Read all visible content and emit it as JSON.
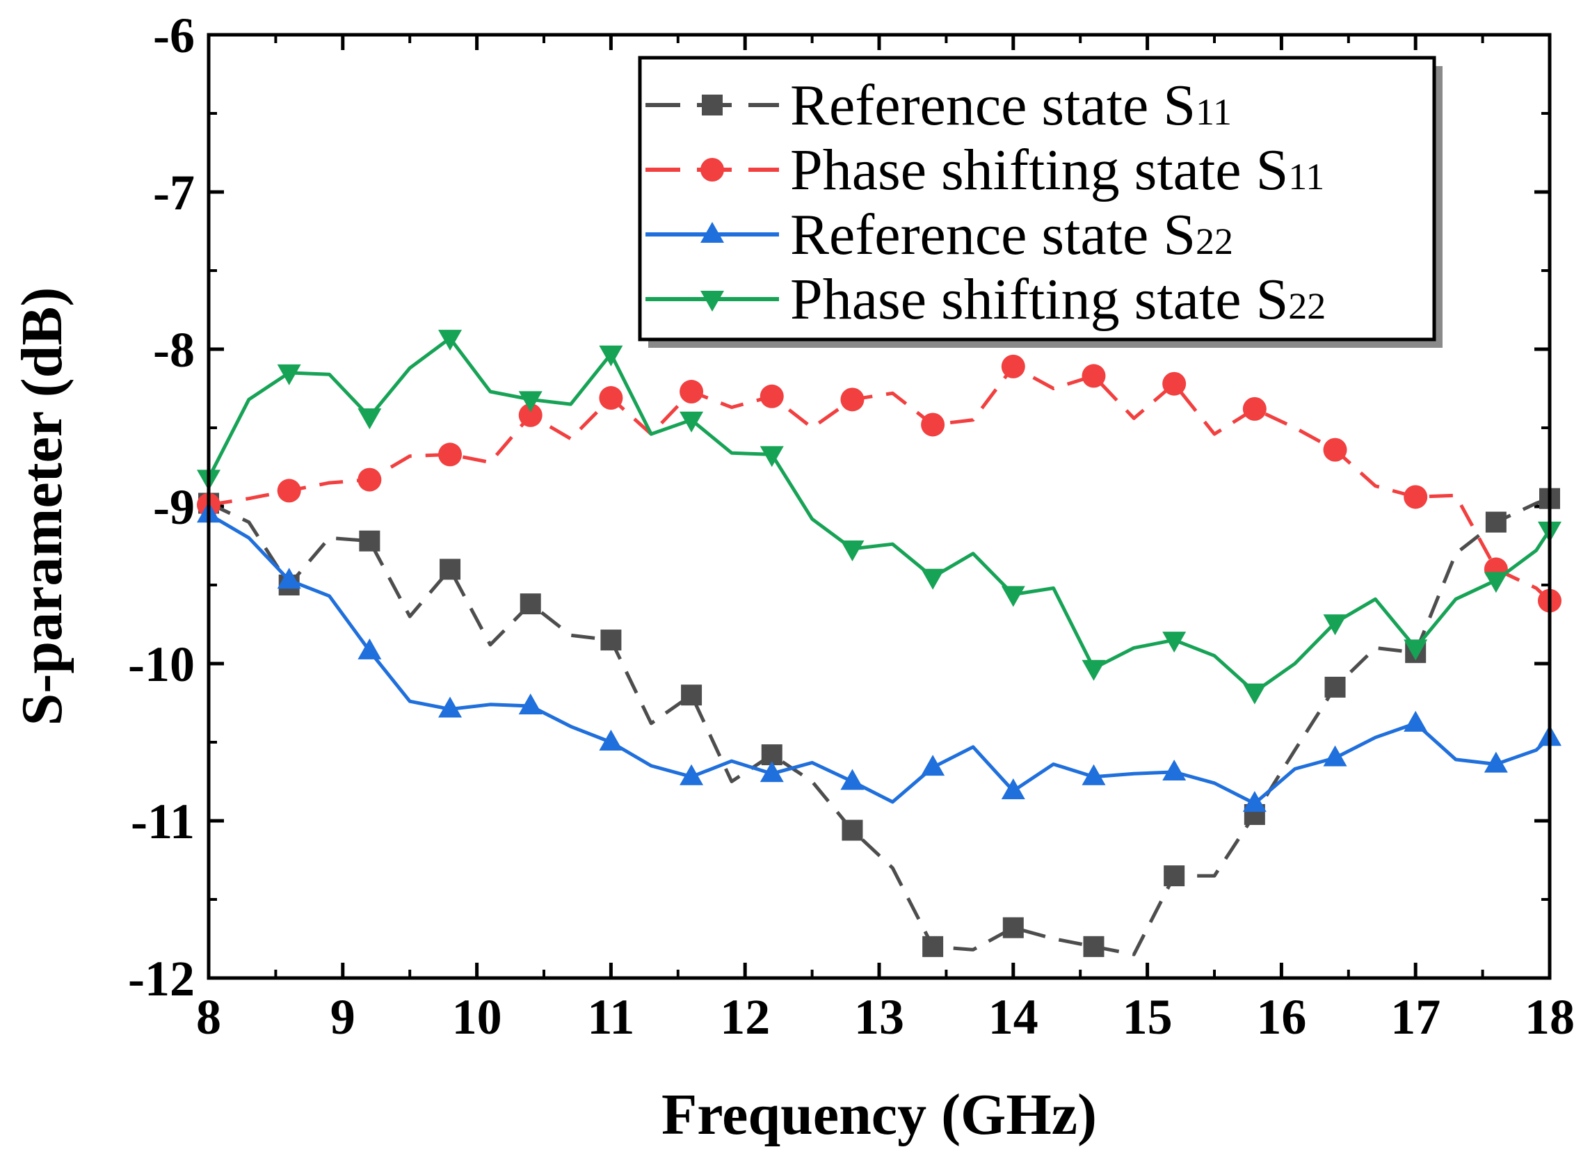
{
  "chart_data": {
    "type": "line",
    "xlabel": "Frequency (GHz)",
    "ylabel": "S-parameter (dB)",
    "xlim": [
      8,
      18
    ],
    "ylim": [
      -12,
      -6
    ],
    "xticks": [
      "8",
      "9",
      "10",
      "11",
      "12",
      "13",
      "14",
      "15",
      "16",
      "17",
      "18"
    ],
    "yticks": [
      "-6",
      "-7",
      "-8",
      "-9",
      "-10",
      "-11",
      "-12"
    ],
    "legend_position": "top-right",
    "series": [
      {
        "name": "Reference state S11",
        "label_main": "Reference state S",
        "label_sub": "11",
        "color": "#4d4d4d",
        "dash": "dash",
        "marker": "square",
        "x": [
          8.0,
          8.3,
          8.6,
          8.9,
          9.2,
          9.5,
          9.8,
          10.1,
          10.4,
          10.7,
          11.0,
          11.3,
          11.6,
          11.9,
          12.2,
          12.5,
          12.8,
          13.1,
          13.4,
          13.7,
          14.0,
          14.3,
          14.6,
          14.9,
          15.2,
          15.5,
          15.8,
          16.1,
          16.4,
          16.7,
          17.0,
          17.3,
          17.6,
          17.9,
          18.0
        ],
        "y": [
          -8.98,
          -9.1,
          -9.5,
          -9.2,
          -9.22,
          -9.7,
          -9.4,
          -9.88,
          -9.62,
          -9.82,
          -9.85,
          -10.38,
          -10.2,
          -10.75,
          -10.58,
          -10.75,
          -11.06,
          -11.3,
          -11.8,
          -11.82,
          -11.68,
          -11.75,
          -11.8,
          -11.85,
          -11.35,
          -11.35,
          -10.96,
          -10.55,
          -10.15,
          -9.9,
          -9.93,
          -9.3,
          -9.1,
          -8.98,
          -8.95
        ]
      },
      {
        "name": "Phase shifting state S11",
        "label_main": "Phase shifting state S",
        "label_sub": "11",
        "color": "#f23f3f",
        "dash": "dash",
        "marker": "circle",
        "x": [
          8.0,
          8.3,
          8.6,
          8.9,
          9.2,
          9.5,
          9.8,
          10.1,
          10.4,
          10.7,
          11.0,
          11.3,
          11.6,
          11.9,
          12.2,
          12.5,
          12.8,
          13.1,
          13.4,
          13.7,
          14.0,
          14.3,
          14.6,
          14.9,
          15.2,
          15.5,
          15.8,
          16.1,
          16.4,
          16.7,
          17.0,
          17.3,
          17.6,
          17.9,
          18.0
        ],
        "y": [
          -8.99,
          -8.95,
          -8.9,
          -8.85,
          -8.83,
          -8.68,
          -8.67,
          -8.72,
          -8.42,
          -8.57,
          -8.31,
          -8.54,
          -8.27,
          -8.37,
          -8.3,
          -8.5,
          -8.32,
          -8.28,
          -8.48,
          -8.45,
          -8.11,
          -8.25,
          -8.17,
          -8.44,
          -8.22,
          -8.54,
          -8.38,
          -8.5,
          -8.64,
          -8.87,
          -8.94,
          -8.93,
          -9.4,
          -9.52,
          -9.6
        ]
      },
      {
        "name": "Reference state S22",
        "label_main": "Reference state S",
        "label_sub": "22",
        "color": "#1f6fdc",
        "dash": "solid",
        "marker": "triangle-up",
        "x": [
          8.0,
          8.3,
          8.6,
          8.9,
          9.2,
          9.5,
          9.8,
          10.1,
          10.4,
          10.7,
          11.0,
          11.3,
          11.6,
          11.9,
          12.2,
          12.5,
          12.8,
          13.1,
          13.4,
          13.7,
          14.0,
          14.3,
          14.6,
          14.9,
          15.2,
          15.5,
          15.8,
          16.1,
          16.4,
          16.7,
          17.0,
          17.3,
          17.6,
          17.9,
          18.0
        ],
        "y": [
          -9.05,
          -9.2,
          -9.47,
          -9.57,
          -9.92,
          -10.24,
          -10.29,
          -10.26,
          -10.27,
          -10.4,
          -10.5,
          -10.65,
          -10.72,
          -10.62,
          -10.7,
          -10.63,
          -10.75,
          -10.88,
          -10.66,
          -10.53,
          -10.81,
          -10.64,
          -10.72,
          -10.7,
          -10.69,
          -10.76,
          -10.89,
          -10.67,
          -10.6,
          -10.47,
          -10.38,
          -10.61,
          -10.64,
          -10.55,
          -10.47
        ]
      },
      {
        "name": "Phase shifting state S22",
        "label_main": "Phase shifting state S",
        "label_sub": "22",
        "color": "#17a356",
        "dash": "solid",
        "marker": "triangle-down",
        "x": [
          8.0,
          8.3,
          8.6,
          8.9,
          9.2,
          9.5,
          9.8,
          10.1,
          10.4,
          10.7,
          11.0,
          11.3,
          11.6,
          11.9,
          12.2,
          12.5,
          12.8,
          13.1,
          13.4,
          13.7,
          14.0,
          14.3,
          14.6,
          14.9,
          15.2,
          15.5,
          15.8,
          16.1,
          16.4,
          16.7,
          17.0,
          17.3,
          17.6,
          17.9,
          18.0
        ],
        "y": [
          -8.82,
          -8.32,
          -8.15,
          -8.16,
          -8.43,
          -8.12,
          -7.93,
          -8.27,
          -8.32,
          -8.35,
          -8.03,
          -8.54,
          -8.45,
          -8.66,
          -8.67,
          -9.08,
          -9.27,
          -9.24,
          -9.45,
          -9.3,
          -9.56,
          -9.52,
          -10.03,
          -9.9,
          -9.85,
          -9.95,
          -10.18,
          -10.0,
          -9.74,
          -9.59,
          -9.9,
          -9.59,
          -9.47,
          -9.28,
          -9.15
        ]
      }
    ]
  }
}
